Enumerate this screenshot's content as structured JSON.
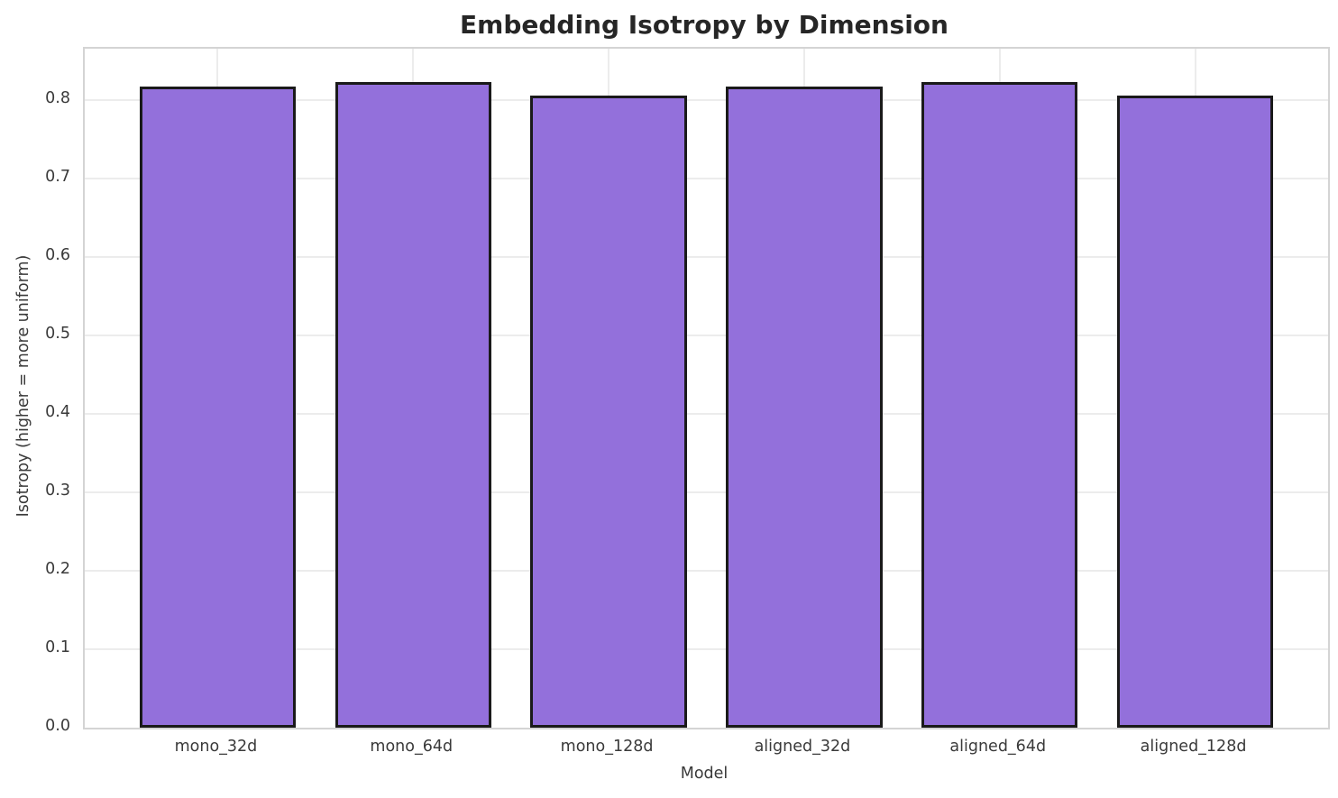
{
  "chart_data": {
    "type": "bar",
    "title": "Embedding Isotropy by Dimension",
    "xlabel": "Model",
    "ylabel": "Isotropy (higher = more uniform)",
    "categories": [
      "mono_32d",
      "mono_64d",
      "mono_128d",
      "aligned_32d",
      "aligned_64d",
      "aligned_128d"
    ],
    "values": [
      0.817,
      0.822,
      0.805,
      0.817,
      0.822,
      0.805
    ],
    "ylim": [
      0,
      0.865
    ],
    "yticks": [
      0.0,
      0.1,
      0.2,
      0.3,
      0.4,
      0.5,
      0.6,
      0.7,
      0.8
    ],
    "ytick_labels": [
      "0.0",
      "0.1",
      "0.2",
      "0.3",
      "0.4",
      "0.5",
      "0.6",
      "0.7",
      "0.8"
    ],
    "grid": true,
    "legend": false,
    "bar_color": "#9370db",
    "bar_edge_color": "#1a1a1a",
    "grid_color": "#ececec",
    "spine_color": "#d4d4d4",
    "background": "#ffffff"
  }
}
